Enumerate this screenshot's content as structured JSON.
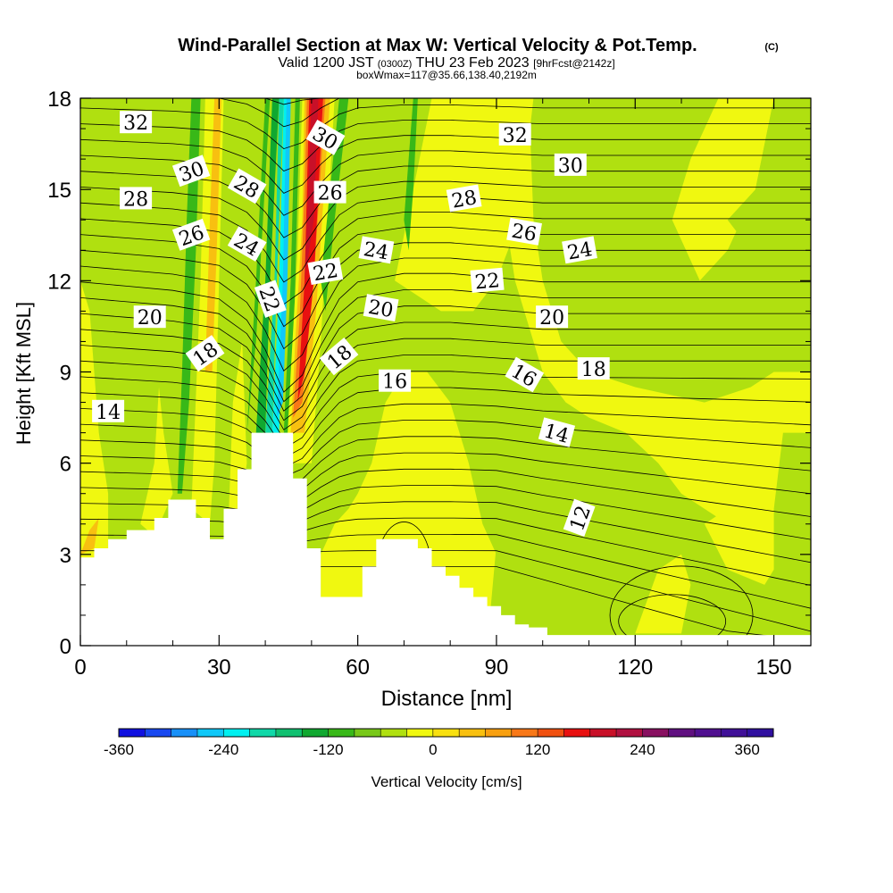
{
  "chart_data": {
    "type": "heatmap",
    "title": "Wind-Parallel Section at Max W: Vertical Velocity & Pot.Temp.",
    "copyright": "(C)",
    "subtitle_parts": [
      "Valid 1200 JST",
      "(0300Z)",
      "THU 23 Feb 2023",
      "[9hrFcst@2142z]"
    ],
    "subtitle2": "boxWmax=117@35.66,138.40,2192m",
    "xlabel": "Distance [nm]",
    "ylabel": "Height [Kft MSL]",
    "xlim": [
      0,
      158
    ],
    "ylim": [
      0,
      18
    ],
    "x_ticks": [
      0,
      30,
      60,
      90,
      120,
      150
    ],
    "x_tick_labels": [
      "0",
      "30",
      "60",
      "90",
      "120",
      "150"
    ],
    "y_ticks": [
      0,
      3,
      6,
      9,
      12,
      15,
      18
    ],
    "y_tick_labels": [
      "0",
      "3",
      "6",
      "9",
      "12",
      "15",
      "18"
    ],
    "colorbar": {
      "label": "Vertical Velocity [cm/s]",
      "min": -360,
      "max": 390,
      "step": 30,
      "tick_values": [
        -360,
        -240,
        -120,
        0,
        120,
        240,
        360
      ],
      "tick_labels": [
        "-360",
        "-240",
        "-120",
        "0",
        "120",
        "240",
        "360"
      ],
      "colors": [
        "#1010e0",
        "#1848f0",
        "#1890f8",
        "#10c8f8",
        "#00f0f0",
        "#10d8a8",
        "#10c070",
        "#10a830",
        "#38b818",
        "#78c818",
        "#b0e010",
        "#f0f810",
        "#f8e010",
        "#f8c010",
        "#f8a010",
        "#f87818",
        "#f05010",
        "#e81010",
        "#c81028",
        "#b01040",
        "#881060",
        "#601080",
        "#501090",
        "#401098",
        "#3010a0"
      ]
    },
    "terrain_profile": [
      [
        0,
        2.9
      ],
      [
        3,
        2.9
      ],
      [
        3,
        3.2
      ],
      [
        6,
        3.2
      ],
      [
        6,
        3.5
      ],
      [
        10,
        3.5
      ],
      [
        10,
        3.8
      ],
      [
        16,
        3.8
      ],
      [
        16,
        4.2
      ],
      [
        19,
        4.2
      ],
      [
        19,
        4.8
      ],
      [
        25,
        4.8
      ],
      [
        25,
        4.2
      ],
      [
        28,
        4.2
      ],
      [
        28,
        3.5
      ],
      [
        31,
        3.5
      ],
      [
        31,
        4.5
      ],
      [
        34,
        4.5
      ],
      [
        34,
        5.8
      ],
      [
        37,
        5.8
      ],
      [
        37,
        7.0
      ],
      [
        46,
        7.0
      ],
      [
        46,
        5.5
      ],
      [
        49,
        5.5
      ],
      [
        49,
        3.2
      ],
      [
        52,
        3.2
      ],
      [
        52,
        1.6
      ],
      [
        61,
        1.6
      ],
      [
        61,
        2.6
      ],
      [
        64,
        2.6
      ],
      [
        64,
        3.5
      ],
      [
        73,
        3.5
      ],
      [
        73,
        3.2
      ],
      [
        76,
        3.2
      ],
      [
        76,
        2.6
      ],
      [
        79,
        2.6
      ],
      [
        79,
        2.3
      ],
      [
        82,
        2.3
      ],
      [
        82,
        1.9
      ],
      [
        85,
        1.9
      ],
      [
        85,
        1.6
      ],
      [
        88,
        1.6
      ],
      [
        88,
        1.3
      ],
      [
        91,
        1.3
      ],
      [
        91,
        1.0
      ],
      [
        94,
        1.0
      ],
      [
        94,
        0.7
      ],
      [
        97,
        0.7
      ],
      [
        97,
        0.6
      ],
      [
        101,
        0.6
      ],
      [
        101,
        0.35
      ],
      [
        158,
        0.35
      ]
    ],
    "theta_contour_labels": [
      {
        "text": "32",
        "x": 12,
        "y": 17.2,
        "angle": 0
      },
      {
        "text": "30",
        "x": 24,
        "y": 15.6,
        "angle": -20
      },
      {
        "text": "28",
        "x": 12,
        "y": 14.7,
        "angle": 0
      },
      {
        "text": "26",
        "x": 24,
        "y": 13.5,
        "angle": -20
      },
      {
        "text": "20",
        "x": 15,
        "y": 10.8,
        "angle": 0
      },
      {
        "text": "18",
        "x": 27,
        "y": 9.6,
        "angle": -35
      },
      {
        "text": "14",
        "x": 6,
        "y": 7.7,
        "angle": 0
      },
      {
        "text": "28",
        "x": 36,
        "y": 15.1,
        "angle": 30
      },
      {
        "text": "24",
        "x": 36,
        "y": 13.2,
        "angle": 30
      },
      {
        "text": "22",
        "x": 41,
        "y": 11.4,
        "angle": 70
      },
      {
        "text": "30",
        "x": 53,
        "y": 16.7,
        "angle": 30
      },
      {
        "text": "26",
        "x": 54,
        "y": 14.9,
        "angle": 0
      },
      {
        "text": "22",
        "x": 53,
        "y": 12.3,
        "angle": -10
      },
      {
        "text": "18",
        "x": 56,
        "y": 9.5,
        "angle": -40
      },
      {
        "text": "24",
        "x": 64,
        "y": 13.0,
        "angle": 10
      },
      {
        "text": "20",
        "x": 65,
        "y": 11.1,
        "angle": 10
      },
      {
        "text": "16",
        "x": 68,
        "y": 8.7,
        "angle": 0
      },
      {
        "text": "28",
        "x": 83,
        "y": 14.7,
        "angle": -10
      },
      {
        "text": "32",
        "x": 94,
        "y": 16.8,
        "angle": 0
      },
      {
        "text": "30",
        "x": 106,
        "y": 15.8,
        "angle": 0
      },
      {
        "text": "26",
        "x": 96,
        "y": 13.6,
        "angle": 10
      },
      {
        "text": "24",
        "x": 108,
        "y": 13.0,
        "angle": -10
      },
      {
        "text": "22",
        "x": 88,
        "y": 12.0,
        "angle": -5
      },
      {
        "text": "20",
        "x": 102,
        "y": 10.8,
        "angle": 0
      },
      {
        "text": "16",
        "x": 96,
        "y": 8.9,
        "angle": 30
      },
      {
        "text": "18",
        "x": 111,
        "y": 9.1,
        "angle": 0
      },
      {
        "text": "14",
        "x": 103,
        "y": 7.0,
        "angle": 15
      },
      {
        "text": "12",
        "x": 108,
        "y": 4.2,
        "angle": -70
      }
    ]
  }
}
